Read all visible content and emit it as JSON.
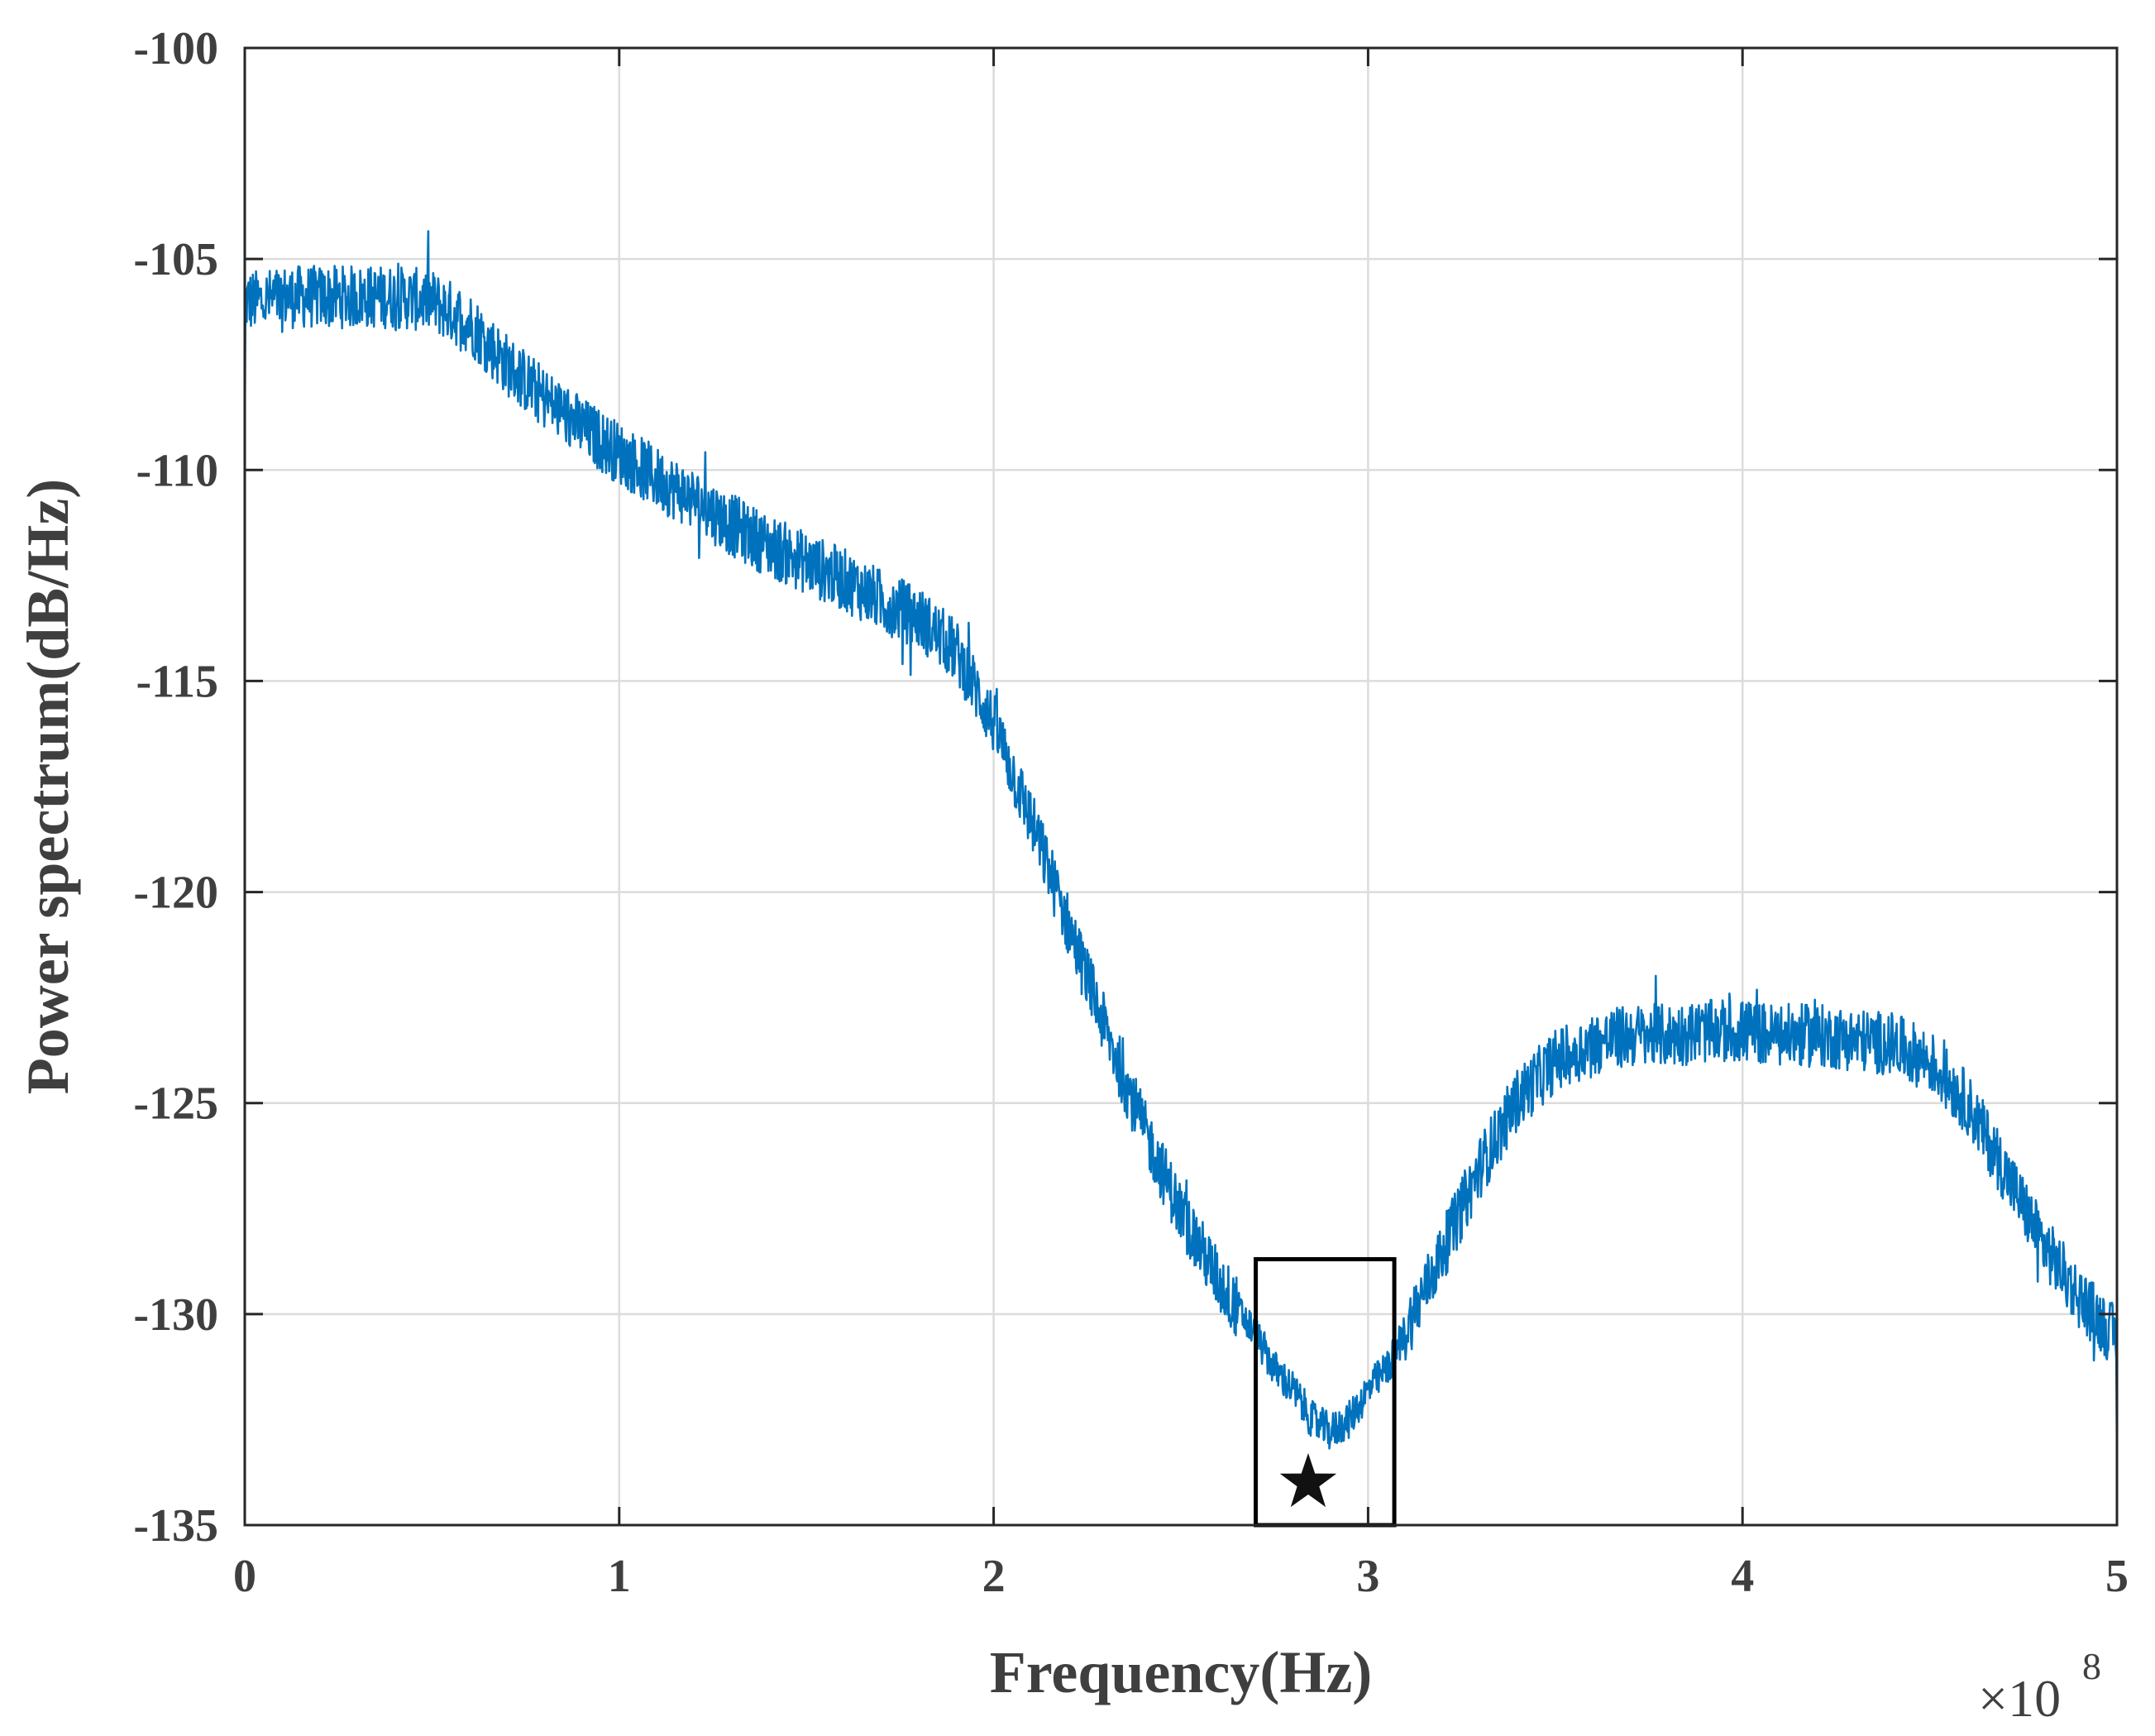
{
  "chart_data": {
    "type": "line",
    "title": "",
    "xlabel": "Frequency(Hz)",
    "ylabel": "Power spectrum(dB/Hz)",
    "x_multiplier_base": "×10",
    "x_multiplier_exp": "8",
    "xlim": [
      0,
      5
    ],
    "ylim": [
      -135,
      -100
    ],
    "x_tick_values": [
      0,
      1,
      2,
      3,
      4,
      5
    ],
    "x_tick_labels": [
      "0",
      "1",
      "2",
      "3",
      "4",
      "5"
    ],
    "y_tick_values": [
      -100,
      -105,
      -110,
      -115,
      -120,
      -125,
      -130,
      -135
    ],
    "y_tick_labels": [
      "-100",
      "-105",
      "-110",
      "-115",
      "-120",
      "-125",
      "-130",
      "-135"
    ],
    "grid": true,
    "series": [
      {
        "name": "Power spectrum",
        "color": "#0072bd",
        "x_units": "×1e8 Hz",
        "x": [
          0.0,
          0.05,
          0.1,
          0.2,
          0.3,
          0.4,
          0.5,
          0.6,
          0.7,
          0.8,
          0.9,
          1.0,
          1.1,
          1.2,
          1.3,
          1.4,
          1.5,
          1.6,
          1.7,
          1.8,
          1.9,
          2.0,
          2.1,
          2.2,
          2.3,
          2.4,
          2.5,
          2.6,
          2.7,
          2.75,
          2.8,
          2.85,
          2.9,
          2.95,
          3.0,
          3.05,
          3.1,
          3.2,
          3.3,
          3.4,
          3.5,
          3.6,
          3.7,
          3.8,
          3.9,
          4.0,
          4.1,
          4.2,
          4.3,
          4.4,
          4.5,
          4.6,
          4.7,
          4.8,
          4.9,
          5.0
        ],
        "y": [
          -106.0,
          -106.0,
          -105.9,
          -105.9,
          -105.9,
          -105.9,
          -106.0,
          -106.5,
          -107.5,
          -108.3,
          -109.0,
          -109.6,
          -110.2,
          -110.7,
          -111.3,
          -111.8,
          -112.2,
          -112.6,
          -113.1,
          -113.5,
          -114.3,
          -116.0,
          -118.3,
          -120.8,
          -123.3,
          -125.6,
          -127.6,
          -129.2,
          -130.5,
          -131.3,
          -131.8,
          -132.5,
          -132.8,
          -132.5,
          -131.8,
          -131.3,
          -130.4,
          -128.5,
          -126.5,
          -124.9,
          -124.0,
          -123.6,
          -123.4,
          -123.4,
          -123.3,
          -123.3,
          -123.4,
          -123.4,
          -123.5,
          -123.6,
          -124.0,
          -125.0,
          -126.6,
          -128.3,
          -129.6,
          -130.6
        ]
      }
    ],
    "annotations": [
      {
        "type": "rectangle",
        "x_range": [
          2.7,
          3.07
        ],
        "y_range": [
          -135,
          -128.7
        ],
        "color": "#000000"
      },
      {
        "type": "star-marker",
        "x": 2.84,
        "y": -134.0,
        "color": "#111111"
      }
    ]
  }
}
